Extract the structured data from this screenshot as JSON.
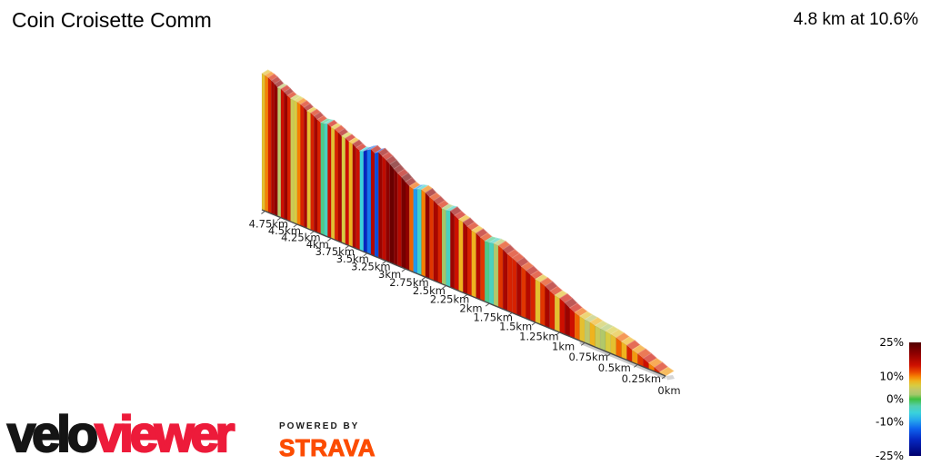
{
  "header": {
    "title": "Coin Croisette Comm",
    "summary": "4.8 km at 10.6%"
  },
  "chart_data": {
    "type": "area",
    "variant": "3d-elevation-ribbon",
    "title": "Coin Croisette Comm",
    "total_distance_km": 4.8,
    "avg_gradient_pct": 10.6,
    "segment_km": 0.05,
    "gradients_pct": [
      9,
      14,
      10,
      15,
      13,
      9,
      14,
      8,
      11,
      7,
      6,
      3,
      5,
      8,
      4,
      7,
      11,
      15,
      19,
      15,
      7,
      14,
      18,
      13,
      7,
      14,
      17,
      13,
      18,
      14,
      14,
      18,
      13,
      3,
      -4,
      -2,
      13,
      17,
      8,
      14,
      18,
      8,
      15,
      19,
      -4,
      2,
      14,
      18,
      13,
      20,
      10,
      -5,
      -10,
      11,
      20,
      22,
      17,
      21,
      23,
      20,
      16,
      19,
      -15,
      17,
      -12,
      -18,
      -6,
      15,
      18,
      8,
      15,
      6,
      18,
      14,
      7,
      15,
      -4,
      -2,
      14,
      18,
      14,
      7,
      18,
      14,
      10,
      6,
      5,
      14,
      19,
      15,
      4,
      20,
      18,
      14,
      10,
      7
    ],
    "x_tick_labels": [
      "0km",
      "0.25km",
      "0.5km",
      "0.75km",
      "1km",
      "1.25km",
      "1.5km",
      "1.75km",
      "2km",
      "2.25km",
      "2.5km",
      "2.75km",
      "3km",
      "3.25km",
      "3.5km",
      "3.75km",
      "4km",
      "4.25km",
      "4.5km",
      "4.75km"
    ],
    "x_tick_step_km": 0.25,
    "colormap_stops": [
      [
        25,
        "#520000"
      ],
      [
        20,
        "#8f0000"
      ],
      [
        15,
        "#cd0f00"
      ],
      [
        12,
        "#ea4800"
      ],
      [
        10,
        "#f58002"
      ],
      [
        8,
        "#efb31e"
      ],
      [
        6,
        "#d8cc41"
      ],
      [
        4,
        "#bec76a"
      ],
      [
        2,
        "#a4c86a"
      ],
      [
        0,
        "#3fc03f"
      ],
      [
        -3,
        "#54cfae"
      ],
      [
        -6,
        "#39d2dc"
      ],
      [
        -9,
        "#27acec"
      ],
      [
        -13,
        "#0e63ee"
      ],
      [
        -18,
        "#0526c0"
      ],
      [
        -25,
        "#00006e"
      ]
    ],
    "legend": {
      "ticks": [
        {
          "label": "25%",
          "value": 25
        },
        {
          "label": "10%",
          "value": 10
        },
        {
          "label": "0%",
          "value": 0
        },
        {
          "label": "-10%",
          "value": -10
        },
        {
          "label": "-25%",
          "value": -25
        }
      ]
    },
    "axis_color": "#4a4a4a",
    "floor_color": "#c9c9c9"
  },
  "branding": {
    "velo": "velo",
    "viewer": "viewer",
    "powered_by": "POWERED BY",
    "strava": "STRAVA",
    "velo_color": "#151515",
    "viewer_color": "#ed1b3a",
    "strava_color": "#fc4c02"
  }
}
